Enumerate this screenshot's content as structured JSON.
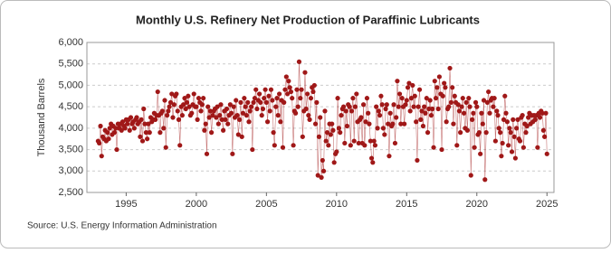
{
  "chart_data": {
    "type": "line",
    "title": "Monthly U.S. Refinery Net Production of Paraffinic Lubricants",
    "y_label": "Thousand Barrels",
    "source": "Source: U.S. Energy Information Administration",
    "xlim": [
      1992.2,
      2025.5
    ],
    "xticks": [
      1995,
      2000,
      2005,
      2010,
      2015,
      2020,
      2025
    ],
    "ylim": [
      2500,
      6000
    ],
    "yticks": [
      {
        "value": 2500,
        "label": "2,500"
      },
      {
        "value": 3000,
        "label": "3,000"
      },
      {
        "value": 3500,
        "label": "3,500"
      },
      {
        "value": 4000,
        "label": "4,000"
      },
      {
        "value": 4500,
        "label": "4,500"
      },
      {
        "value": 5000,
        "label": "5,000"
      },
      {
        "value": 5500,
        "label": "5,500"
      },
      {
        "value": 6000,
        "label": "6,000"
      }
    ],
    "grid": true,
    "x": [
      1993.0,
      1993.08,
      1993.17,
      1993.25,
      1993.33,
      1993.42,
      1993.5,
      1993.58,
      1993.67,
      1993.75,
      1993.83,
      1993.92,
      1994.0,
      1994.08,
      1994.17,
      1994.25,
      1994.33,
      1994.42,
      1994.5,
      1994.58,
      1994.67,
      1994.75,
      1994.83,
      1994.92,
      1995.0,
      1995.08,
      1995.17,
      1995.25,
      1995.33,
      1995.42,
      1995.5,
      1995.58,
      1995.67,
      1995.75,
      1995.83,
      1995.92,
      1996.0,
      1996.08,
      1996.17,
      1996.25,
      1996.33,
      1996.42,
      1996.5,
      1996.58,
      1996.67,
      1996.75,
      1996.83,
      1996.92,
      1997.0,
      1997.08,
      1997.17,
      1997.25,
      1997.33,
      1997.42,
      1997.5,
      1997.58,
      1997.67,
      1997.75,
      1997.83,
      1997.92,
      1998.0,
      1998.08,
      1998.17,
      1998.25,
      1998.33,
      1998.42,
      1998.5,
      1998.58,
      1998.67,
      1998.75,
      1998.83,
      1998.92,
      1999.0,
      1999.08,
      1999.17,
      1999.25,
      1999.33,
      1999.42,
      1999.5,
      1999.58,
      1999.67,
      1999.75,
      1999.83,
      1999.92,
      2000.0,
      2000.08,
      2000.17,
      2000.25,
      2000.33,
      2000.42,
      2000.5,
      2000.58,
      2000.67,
      2000.75,
      2000.83,
      2000.92,
      2001.0,
      2001.08,
      2001.17,
      2001.25,
      2001.33,
      2001.42,
      2001.5,
      2001.58,
      2001.67,
      2001.75,
      2001.83,
      2001.92,
      2002.0,
      2002.08,
      2002.17,
      2002.25,
      2002.33,
      2002.42,
      2002.5,
      2002.58,
      2002.67,
      2002.75,
      2002.83,
      2002.92,
      2003.0,
      2003.08,
      2003.17,
      2003.25,
      2003.33,
      2003.42,
      2003.5,
      2003.58,
      2003.67,
      2003.75,
      2003.83,
      2003.92,
      2004.0,
      2004.08,
      2004.17,
      2004.25,
      2004.33,
      2004.42,
      2004.5,
      2004.58,
      2004.67,
      2004.75,
      2004.83,
      2004.92,
      2005.0,
      2005.08,
      2005.17,
      2005.25,
      2005.33,
      2005.42,
      2005.5,
      2005.58,
      2005.67,
      2005.75,
      2005.83,
      2005.92,
      2006.0,
      2006.08,
      2006.17,
      2006.25,
      2006.33,
      2006.42,
      2006.5,
      2006.58,
      2006.67,
      2006.75,
      2006.83,
      2006.92,
      2007.0,
      2007.08,
      2007.17,
      2007.25,
      2007.33,
      2007.42,
      2007.5,
      2007.58,
      2007.67,
      2007.75,
      2007.83,
      2007.92,
      2008.0,
      2008.08,
      2008.17,
      2008.25,
      2008.33,
      2008.42,
      2008.5,
      2008.58,
      2008.67,
      2008.75,
      2008.83,
      2008.92,
      2009.0,
      2009.08,
      2009.17,
      2009.25,
      2009.33,
      2009.42,
      2009.5,
      2009.58,
      2009.67,
      2009.75,
      2009.83,
      2009.92,
      2010.0,
      2010.08,
      2010.17,
      2010.25,
      2010.33,
      2010.42,
      2010.5,
      2010.58,
      2010.67,
      2010.75,
      2010.83,
      2010.92,
      2011.0,
      2011.08,
      2011.17,
      2011.25,
      2011.33,
      2011.42,
      2011.5,
      2011.58,
      2011.67,
      2011.75,
      2011.83,
      2011.92,
      2012.0,
      2012.08,
      2012.17,
      2012.25,
      2012.33,
      2012.42,
      2012.5,
      2012.58,
      2012.67,
      2012.75,
      2012.83,
      2012.92,
      2013.0,
      2013.08,
      2013.17,
      2013.25,
      2013.33,
      2013.42,
      2013.5,
      2013.58,
      2013.67,
      2013.75,
      2013.83,
      2013.92,
      2014.0,
      2014.08,
      2014.17,
      2014.25,
      2014.33,
      2014.42,
      2014.5,
      2014.58,
      2014.67,
      2014.75,
      2014.83,
      2014.92,
      2015.0,
      2015.08,
      2015.17,
      2015.25,
      2015.33,
      2015.42,
      2015.5,
      2015.58,
      2015.67,
      2015.75,
      2015.83,
      2015.92,
      2016.0,
      2016.08,
      2016.17,
      2016.25,
      2016.33,
      2016.42,
      2016.5,
      2016.58,
      2016.67,
      2016.75,
      2016.83,
      2016.92,
      2017.0,
      2017.08,
      2017.17,
      2017.25,
      2017.33,
      2017.42,
      2017.5,
      2017.58,
      2017.67,
      2017.75,
      2017.83,
      2017.92,
      2018.0,
      2018.08,
      2018.17,
      2018.25,
      2018.33,
      2018.42,
      2018.5,
      2018.58,
      2018.67,
      2018.75,
      2018.83,
      2018.92,
      2019.0,
      2019.08,
      2019.17,
      2019.25,
      2019.33,
      2019.42,
      2019.5,
      2019.58,
      2019.67,
      2019.75,
      2019.83,
      2019.92,
      2020.0,
      2020.08,
      2020.17,
      2020.25,
      2020.33,
      2020.42,
      2020.5,
      2020.58,
      2020.67,
      2020.75,
      2020.83,
      2020.92,
      2021.0,
      2021.08,
      2021.17,
      2021.25,
      2021.33,
      2021.42,
      2021.5,
      2021.58,
      2021.67,
      2021.75,
      2021.83,
      2021.92,
      2022.0,
      2022.08,
      2022.17,
      2022.25,
      2022.33,
      2022.42,
      2022.5,
      2022.58,
      2022.67,
      2022.75,
      2022.83,
      2022.92,
      2023.0,
      2023.08,
      2023.17,
      2023.25,
      2023.33,
      2023.42,
      2023.5,
      2023.58,
      2023.67,
      2023.75,
      2023.83,
      2023.92,
      2024.0,
      2024.08,
      2024.17,
      2024.25,
      2024.33,
      2024.42,
      2024.5,
      2024.58,
      2024.67,
      2024.75,
      2024.83,
      2024.92,
      2025.0
    ],
    "series": [
      {
        "color": "#a01818",
        "values": [
          3700,
          3650,
          4050,
          3350,
          3800,
          3750,
          3950,
          3700,
          3900,
          3750,
          4000,
          4100,
          3850,
          4050,
          3900,
          4000,
          3500,
          4100,
          4000,
          4100,
          3950,
          4150,
          4050,
          4000,
          4200,
          4100,
          4200,
          3950,
          4250,
          4100,
          4150,
          4000,
          4200,
          4250,
          4100,
          4150,
          3800,
          4200,
          3700,
          4450,
          4100,
          3900,
          3750,
          4100,
          3900,
          4250,
          4150,
          4200,
          4350,
          4200,
          4300,
          4850,
          4300,
          3900,
          4350,
          4400,
          4000,
          4650,
          3550,
          4300,
          4400,
          4500,
          4600,
          4800,
          4250,
          4550,
          4750,
          4800,
          4400,
          4200,
          3600,
          4500,
          4300,
          4550,
          4700,
          4450,
          4600,
          4750,
          4500,
          4300,
          4350,
          4550,
          4800,
          4500,
          4500,
          4200,
          4700,
          4600,
          4400,
          4550,
          4700,
          3950,
          4100,
          3400,
          4500,
          4250,
          4400,
          3900,
          4300,
          4400,
          4450,
          4250,
          4500,
          4100,
          4300,
          4550,
          4200,
          3950,
          4400,
          4200,
          4450,
          4100,
          4300,
          4550,
          4350,
          3400,
          4500,
          4250,
          4650,
          4300,
          3850,
          4200,
          4600,
          3800,
          4350,
          4700,
          4500,
          4300,
          4600,
          4150,
          4400,
          4500,
          3500,
          4600,
          4700,
          4900,
          4450,
          4650,
          4800,
          4600,
          4300,
          4450,
          4700,
          4900,
          4600,
          4150,
          4750,
          4400,
          4900,
          4650,
          3900,
          3600,
          4500,
          4700,
          4300,
          4800,
          4150,
          4650,
          3550,
          4600,
          4900,
          5200,
          4800,
          5100,
          4950,
          4850,
          4700,
          3600,
          4400,
          4350,
          4900,
          4500,
          5550,
          4700,
          4900,
          3800,
          4400,
          5300,
          4450,
          4800,
          4300,
          4200,
          4700,
          4950,
          4850,
          5000,
          4100,
          4600,
          2900,
          3800,
          4250,
          2850,
          3250,
          3000,
          4400,
          3700,
          3900,
          3600,
          4100,
          3850,
          4100,
          3950,
          3200,
          3400,
          3450,
          4700,
          4000,
          3900,
          4300,
          4450,
          4500,
          3650,
          4400,
          4050,
          4550,
          4500,
          3600,
          4400,
          4700,
          3700,
          4500,
          4800,
          4150,
          3650,
          4200,
          4250,
          3650,
          4550,
          3600,
          4150,
          4700,
          4350,
          4100,
          3700,
          3300,
          3200,
          3700,
          3600,
          4500,
          4000,
          4400,
          4300,
          4750,
          4550,
          4000,
          3850,
          4450,
          4550,
          4100,
          3350,
          4350,
          4050,
          4100,
          4550,
          3650,
          4250,
          5100,
          4500,
          4800,
          4100,
          4700,
          4500,
          4100,
          4550,
          4650,
          4950,
          5050,
          4400,
          4700,
          5000,
          4500,
          4750,
          4150,
          3250,
          4500,
          4900,
          4200,
          4400,
          4050,
          4500,
          4350,
          4700,
          3900,
          4450,
          4650,
          4300,
          4450,
          3550,
          5100,
          4700,
          4950,
          4450,
          5200,
          4800,
          3500,
          4750,
          5050,
          4950,
          4150,
          4450,
          4500,
          5400,
          4600,
          4950,
          4100,
          4750,
          4600,
          3600,
          4550,
          4400,
          3900,
          4500,
          4700,
          4350,
          4000,
          4600,
          3950,
          4700,
          4500,
          2900,
          4200,
          4350,
          3550,
          4600,
          4500,
          3850,
          3900,
          3400,
          4350,
          4100,
          4650,
          2800,
          3900,
          4600,
          4850,
          4350,
          4650,
          4700,
          4500,
          4700,
          3700,
          4400,
          4300,
          4000,
          3900,
          3350,
          3650,
          4200,
          4750,
          4350,
          4150,
          3600,
          4000,
          3900,
          3450,
          4200,
          3800,
          3300,
          4000,
          4200,
          3750,
          3700,
          4250,
          4300,
          3550,
          4100,
          3900,
          4050,
          4250,
          4350,
          4100,
          4300,
          4150,
          4300,
          4200,
          4300,
          3550,
          4350,
          4250,
          4400,
          4350,
          3950,
          3800,
          4350,
          3400
        ]
      }
    ]
  }
}
